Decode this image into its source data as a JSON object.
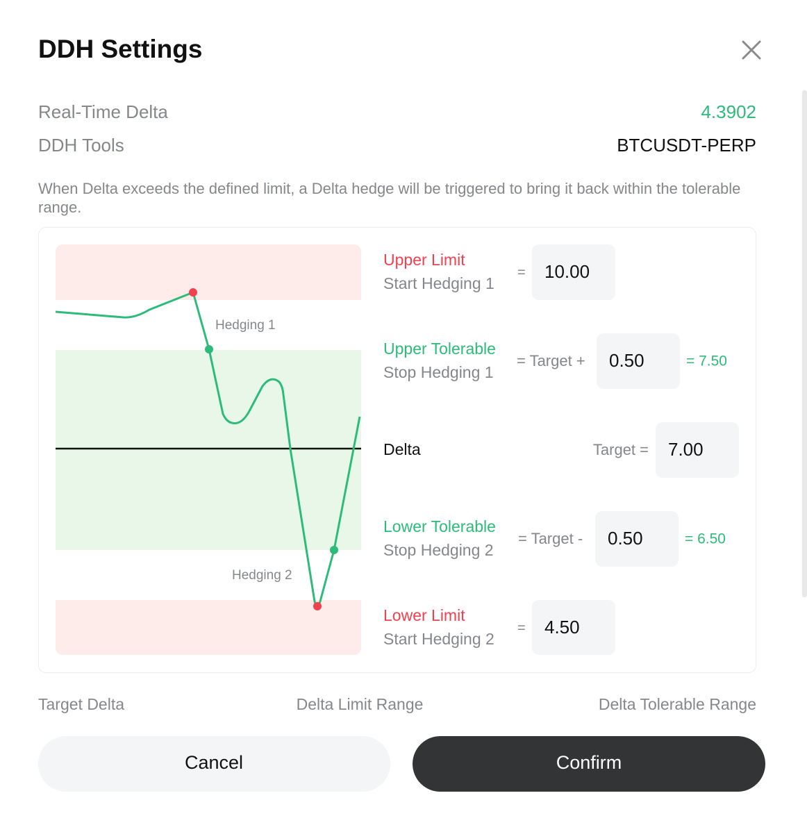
{
  "header": {
    "title": "DDH Settings"
  },
  "info": [
    {
      "label": "Real-Time Delta",
      "value": "4.3902"
    },
    {
      "label": "DDH Tools",
      "value": "BTCUSDT-PERP"
    }
  ],
  "description": "When Delta exceeds the defined limit, a Delta hedge will be triggered to bring it back within the tolerable range.",
  "diagram": {
    "annotations": [
      "Hedging 1",
      "Hedging 2"
    ],
    "rows": [
      {
        "title": "Upper Limit",
        "subtitle": "Start Hedging 1",
        "operator": "=",
        "input": "10.00"
      },
      {
        "title": "Upper Tolerable",
        "subtitle": "Stop Hedging 1",
        "operator": "= Target +",
        "input": "0.50",
        "result": "= 7.50"
      },
      {
        "title": "Delta",
        "operator": "Target =",
        "input": "7.00"
      },
      {
        "title": "Lower Tolerable",
        "subtitle": "Stop Hedging 2",
        "operator": "= Target -",
        "input": "0.50",
        "result": "= 6.50"
      },
      {
        "title": "Lower Limit",
        "subtitle": "Start Hedging 2",
        "operator": "=",
        "input": "4.50"
      }
    ]
  },
  "footer_labels": [
    "Target Delta",
    "Delta Limit Range",
    "Delta Tolerable Range"
  ],
  "buttons": {
    "cancel": "Cancel",
    "confirm": "Confirm"
  }
}
